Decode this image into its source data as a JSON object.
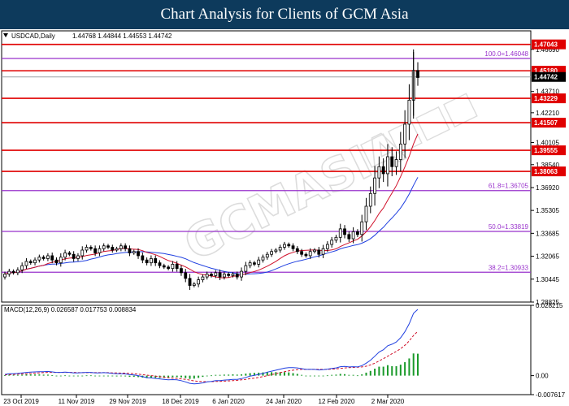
{
  "header": {
    "title": "Chart Analysis for Clients of GCM Asia"
  },
  "chart_data": [
    {
      "type": "candlestick",
      "title": "USDCAD,Daily",
      "ohlc_label": "1.44768 1.44844 1.44553 1.44742",
      "ylim": [
        1.28825,
        1.48
      ],
      "yticks": [
        "1.46690",
        "1.43710",
        "1.42210",
        "1.40105",
        "1.38540",
        "1.36920",
        "1.35305",
        "1.33685",
        "1.32065",
        "1.30445",
        "1.28825"
      ],
      "xticks": [
        "23 Oct 2019",
        "11 Nov 2019",
        "29 Nov 2019",
        "18 Dec 2019",
        "6 Jan 2020",
        "24 Jan 2020",
        "12 Feb 2020",
        "2 Mar 2020"
      ],
      "last_price": "1.44742",
      "last_price_color": "#000000",
      "resistance_support": [
        {
          "label": "1.47043",
          "value": 1.47043
        },
        {
          "label": "1.45180",
          "value": 1.4518
        },
        {
          "label": "1.43229",
          "value": 1.43229
        },
        {
          "label": "1.41507",
          "value": 1.41507
        },
        {
          "label": "1.39555",
          "value": 1.39555
        },
        {
          "label": "1.38063",
          "value": 1.38063
        }
      ],
      "level_color": "#e00000",
      "fibonacci": [
        {
          "label": "100.0=1.46048",
          "value": 1.46048
        },
        {
          "label": "61.8=1.36705",
          "value": 1.36705
        },
        {
          "label": "50.0=1.33819",
          "value": 1.33819
        },
        {
          "label": "38.2=1.30933",
          "value": 1.30933
        }
      ],
      "fib_color": "#9932cc",
      "current_line": 1.44742,
      "close": [
        1.308,
        1.31,
        1.309,
        1.311,
        1.314,
        1.317,
        1.316,
        1.318,
        1.32,
        1.319,
        1.321,
        1.318,
        1.316,
        1.32,
        1.323,
        1.322,
        1.319,
        1.321,
        1.325,
        1.327,
        1.326,
        1.323,
        1.326,
        1.328,
        1.327,
        1.325,
        1.326,
        1.328,
        1.326,
        1.323,
        1.324,
        1.321,
        1.318,
        1.316,
        1.319,
        1.316,
        1.314,
        1.313,
        1.312,
        1.315,
        1.312,
        1.309,
        1.305,
        1.3,
        1.301,
        1.304,
        1.306,
        1.308,
        1.307,
        1.309,
        1.306,
        1.308,
        1.307,
        1.308,
        1.306,
        1.31,
        1.314,
        1.316,
        1.315,
        1.318,
        1.32,
        1.322,
        1.324,
        1.325,
        1.327,
        1.329,
        1.328,
        1.326,
        1.324,
        1.322,
        1.321,
        1.324,
        1.325,
        1.322,
        1.326,
        1.329,
        1.332,
        1.334,
        1.34,
        1.336,
        1.333,
        1.338,
        1.336,
        1.345,
        1.356,
        1.365,
        1.376,
        1.384,
        1.379,
        1.391,
        1.384,
        1.389,
        1.4,
        1.414,
        1.431,
        1.452,
        1.447
      ],
      "macd": {
        "label": "MACD(12,26,9) 0.026587 0.017753 0.008834",
        "yticks": [
          "0.028215",
          "0.00",
          "-0.007617"
        ],
        "ylim": [
          -0.007617,
          0.028215
        ],
        "main": [
          0.0005,
          0.0008,
          0.0008,
          0.0009,
          0.0011,
          0.0013,
          0.0014,
          0.0015,
          0.0016,
          0.0016,
          0.0017,
          0.0015,
          0.0013,
          0.0013,
          0.0014,
          0.0013,
          0.0011,
          0.0011,
          0.0012,
          0.0013,
          0.0013,
          0.0011,
          0.0011,
          0.0012,
          0.0011,
          0.0009,
          0.0008,
          0.0008,
          0.0007,
          0.0004,
          0.0003,
          0.0,
          -0.0004,
          -0.0008,
          -0.0009,
          -0.0011,
          -0.0013,
          -0.0015,
          -0.0017,
          -0.0016,
          -0.0017,
          -0.002,
          -0.0025,
          -0.0031,
          -0.0033,
          -0.0032,
          -0.0029,
          -0.0025,
          -0.0023,
          -0.002,
          -0.002,
          -0.0018,
          -0.0017,
          -0.0015,
          -0.0015,
          -0.0012,
          -0.0007,
          -0.0002,
          0.0001,
          0.0005,
          0.0009,
          0.0014,
          0.0018,
          0.0022,
          0.0026,
          0.003,
          0.0032,
          0.0032,
          0.0031,
          0.0028,
          0.0025,
          0.0025,
          0.0025,
          0.0023,
          0.0024,
          0.0026,
          0.0029,
          0.0031,
          0.0036,
          0.0037,
          0.0035,
          0.0036,
          0.0035,
          0.004,
          0.005,
          0.0062,
          0.0078,
          0.0095,
          0.0104,
          0.012,
          0.0126,
          0.0135,
          0.0152,
          0.0176,
          0.0208,
          0.025,
          0.0266
        ],
        "signal": [
          0.0003,
          0.0004,
          0.0005,
          0.0006,
          0.0007,
          0.0008,
          0.0009,
          0.001,
          0.0011,
          0.0012,
          0.0013,
          0.0013,
          0.0013,
          0.0013,
          0.0013,
          0.0013,
          0.0013,
          0.0012,
          0.0012,
          0.0012,
          0.0012,
          0.0012,
          0.0012,
          0.0012,
          0.0012,
          0.0011,
          0.0011,
          0.001,
          0.001,
          0.0009,
          0.0008,
          0.0006,
          0.0004,
          0.0002,
          0.0,
          -0.0002,
          -0.0004,
          -0.0006,
          -0.0008,
          -0.001,
          -0.0011,
          -0.0013,
          -0.0015,
          -0.0018,
          -0.0021,
          -0.0023,
          -0.0024,
          -0.0024,
          -0.0024,
          -0.0023,
          -0.0023,
          -0.0022,
          -0.0021,
          -0.002,
          -0.0019,
          -0.0017,
          -0.0015,
          -0.0012,
          -0.001,
          -0.0007,
          -0.0004,
          0.0,
          0.0004,
          0.0008,
          0.0012,
          0.0016,
          0.0019,
          0.0022,
          0.0024,
          0.0025,
          0.0025,
          0.0025,
          0.0025,
          0.0025,
          0.0025,
          0.0025,
          0.0026,
          0.0027,
          0.0029,
          0.0031,
          0.0032,
          0.0033,
          0.0034,
          0.0035,
          0.0038,
          0.0043,
          0.005,
          0.0059,
          0.0068,
          0.0078,
          0.0088,
          0.0097,
          0.0108,
          0.0122,
          0.0139,
          0.0161,
          0.0178
        ]
      }
    }
  ]
}
